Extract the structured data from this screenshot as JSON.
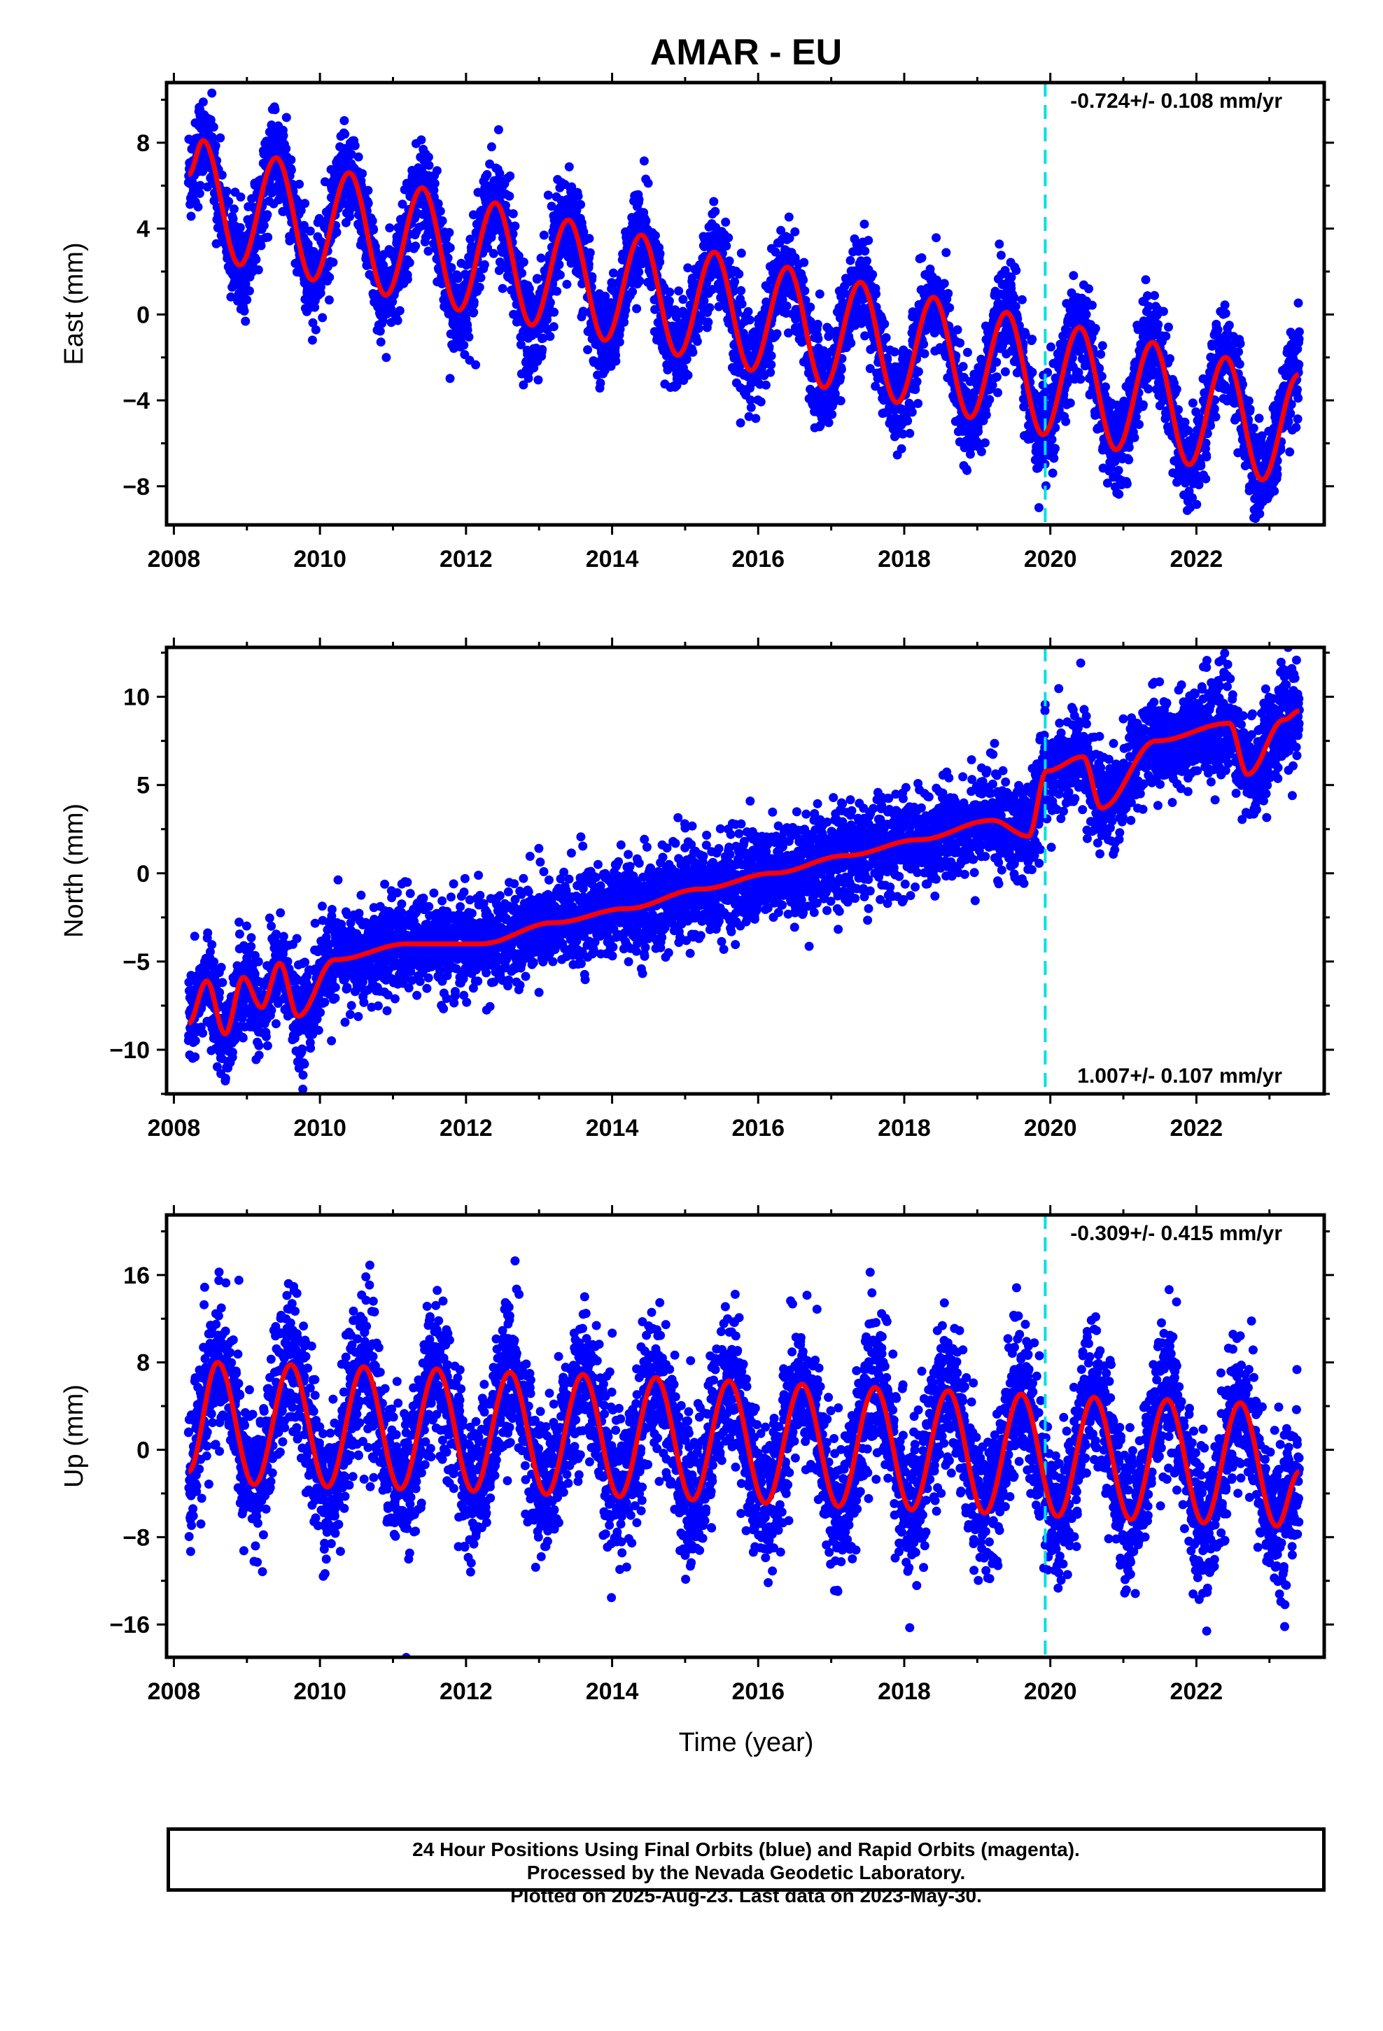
{
  "figure": {
    "title": "AMAR - EU",
    "xlabel": "Time (year)",
    "x_ticks": [
      "2008",
      "2010",
      "2012",
      "2014",
      "2016",
      "2018",
      "2020",
      "2022"
    ],
    "colors": {
      "final_orbits": "#0000ff",
      "fit": "#ff0000",
      "marker_line": "#00e0e0",
      "frame": "#000000"
    },
    "marker_line_year": 2019.93
  },
  "footer": {
    "line1": "24 Hour Positions Using Final Orbits (blue) and Rapid Orbits (magenta).",
    "line2": "Processed by the Nevada Geodetic Laboratory.",
    "line3": "Plotted on 2025-Aug-23. Last data on 2023-May-30."
  },
  "chart_data": [
    {
      "type": "scatter",
      "component": "east",
      "ylabel": "East (mm)",
      "rate_text": "-0.724+/- 0.108 mm/yr",
      "rate_position": "top-right",
      "xlim": [
        2007.9,
        2023.75
      ],
      "ylim": [
        -9.8,
        10.8
      ],
      "y_ticks": [
        8,
        4,
        0,
        -4,
        -8
      ],
      "y_tick_labels": [
        "8",
        "4",
        "0",
        "−4",
        "−8"
      ],
      "series": [
        {
          "kind": "fit",
          "color": "#ff0000",
          "x": [
            2008.2,
            2008.4,
            2008.9,
            2009.4,
            2009.9,
            2010.4,
            2010.9,
            2011.4,
            2011.9,
            2012.4,
            2012.9,
            2013.4,
            2013.9,
            2014.4,
            2014.9,
            2015.4,
            2015.9,
            2016.4,
            2016.9,
            2017.4,
            2017.9,
            2018.4,
            2018.9,
            2019.4,
            2019.9,
            2020.4,
            2020.9,
            2021.4,
            2021.9,
            2022.4,
            2022.9,
            2023.4
          ],
          "y": [
            6.5,
            8.1,
            2.3,
            7.3,
            1.6,
            6.6,
            0.9,
            5.9,
            0.2,
            5.2,
            -0.5,
            4.4,
            -1.2,
            3.7,
            -1.9,
            2.9,
            -2.6,
            2.2,
            -3.4,
            1.5,
            -4.1,
            0.8,
            -4.8,
            0.1,
            -5.6,
            -0.6,
            -6.3,
            -1.3,
            -7.0,
            -2.0,
            -7.7,
            -2.8
          ]
        }
      ],
      "scatter_model": {
        "color": "#0000ff",
        "x_start": 2008.2,
        "x_end": 2023.41,
        "description": "daily positions scattered around the fit"
      }
    },
    {
      "type": "scatter",
      "component": "north",
      "ylabel": "North (mm)",
      "rate_text": "1.007+/- 0.107 mm/yr",
      "rate_position": "bottom-right",
      "xlim": [
        2007.9,
        2023.75
      ],
      "ylim": [
        -12.5,
        12.8
      ],
      "y_ticks": [
        10,
        5,
        0,
        -5,
        -10
      ],
      "y_tick_labels": [
        "10",
        "5",
        "0",
        "−5",
        "−10"
      ],
      "series": [
        {
          "kind": "fit",
          "color": "#ff0000",
          "x": [
            2008.2,
            2008.45,
            2008.7,
            2008.95,
            2009.2,
            2009.45,
            2009.7,
            2010.2,
            2011.2,
            2012.2,
            2013.2,
            2014.2,
            2015.2,
            2016.2,
            2017.2,
            2018.2,
            2019.2,
            2019.7,
            2019.95,
            2020.45,
            2020.7,
            2021.45,
            2022.45,
            2022.7,
            2023.2,
            2023.41
          ],
          "y": [
            -8.5,
            -6.1,
            -9.1,
            -5.9,
            -7.6,
            -5.1,
            -8.1,
            -4.9,
            -4.0,
            -4.0,
            -2.8,
            -2.0,
            -0.9,
            0.0,
            1.0,
            1.9,
            3.0,
            2.1,
            5.8,
            6.6,
            3.7,
            7.5,
            8.5,
            5.6,
            8.7,
            9.2
          ]
        }
      ],
      "scatter_model": {
        "color": "#0000ff",
        "x_start": 2008.2,
        "x_end": 2023.41,
        "description": "daily positions scattered around the fit"
      }
    },
    {
      "type": "scatter",
      "component": "up",
      "ylabel": "Up (mm)",
      "rate_text": "-0.309+/- 0.415 mm/yr",
      "rate_position": "top-right",
      "xlim": [
        2007.9,
        2023.75
      ],
      "ylim": [
        -19.0,
        21.5
      ],
      "y_ticks": [
        16,
        8,
        0,
        -8,
        -16
      ],
      "y_tick_labels": [
        "16",
        "8",
        "0",
        "−8",
        "−16"
      ],
      "series": [
        {
          "kind": "fit",
          "color": "#ff0000",
          "x": [
            2008.2,
            2008.6,
            2009.1,
            2009.6,
            2010.1,
            2010.6,
            2011.1,
            2011.6,
            2012.1,
            2012.6,
            2013.1,
            2013.6,
            2014.1,
            2014.6,
            2015.1,
            2015.6,
            2016.1,
            2016.6,
            2017.1,
            2017.6,
            2018.1,
            2018.6,
            2019.1,
            2019.6,
            2020.1,
            2020.6,
            2021.1,
            2021.6,
            2022.1,
            2022.6,
            2023.1,
            2023.41
          ],
          "y": [
            -2.0,
            8.0,
            -3.2,
            7.8,
            -3.4,
            7.6,
            -3.6,
            7.4,
            -3.8,
            7.1,
            -4.1,
            6.9,
            -4.3,
            6.6,
            -4.6,
            6.3,
            -4.9,
            6.0,
            -5.2,
            5.7,
            -5.5,
            5.4,
            -5.8,
            5.1,
            -6.1,
            4.8,
            -6.4,
            4.6,
            -6.7,
            4.3,
            -7.0,
            -2.0
          ]
        }
      ],
      "scatter_model": {
        "color": "#0000ff",
        "x_start": 2008.2,
        "x_end": 2023.41,
        "description": "daily positions scattered around the fit"
      }
    }
  ]
}
